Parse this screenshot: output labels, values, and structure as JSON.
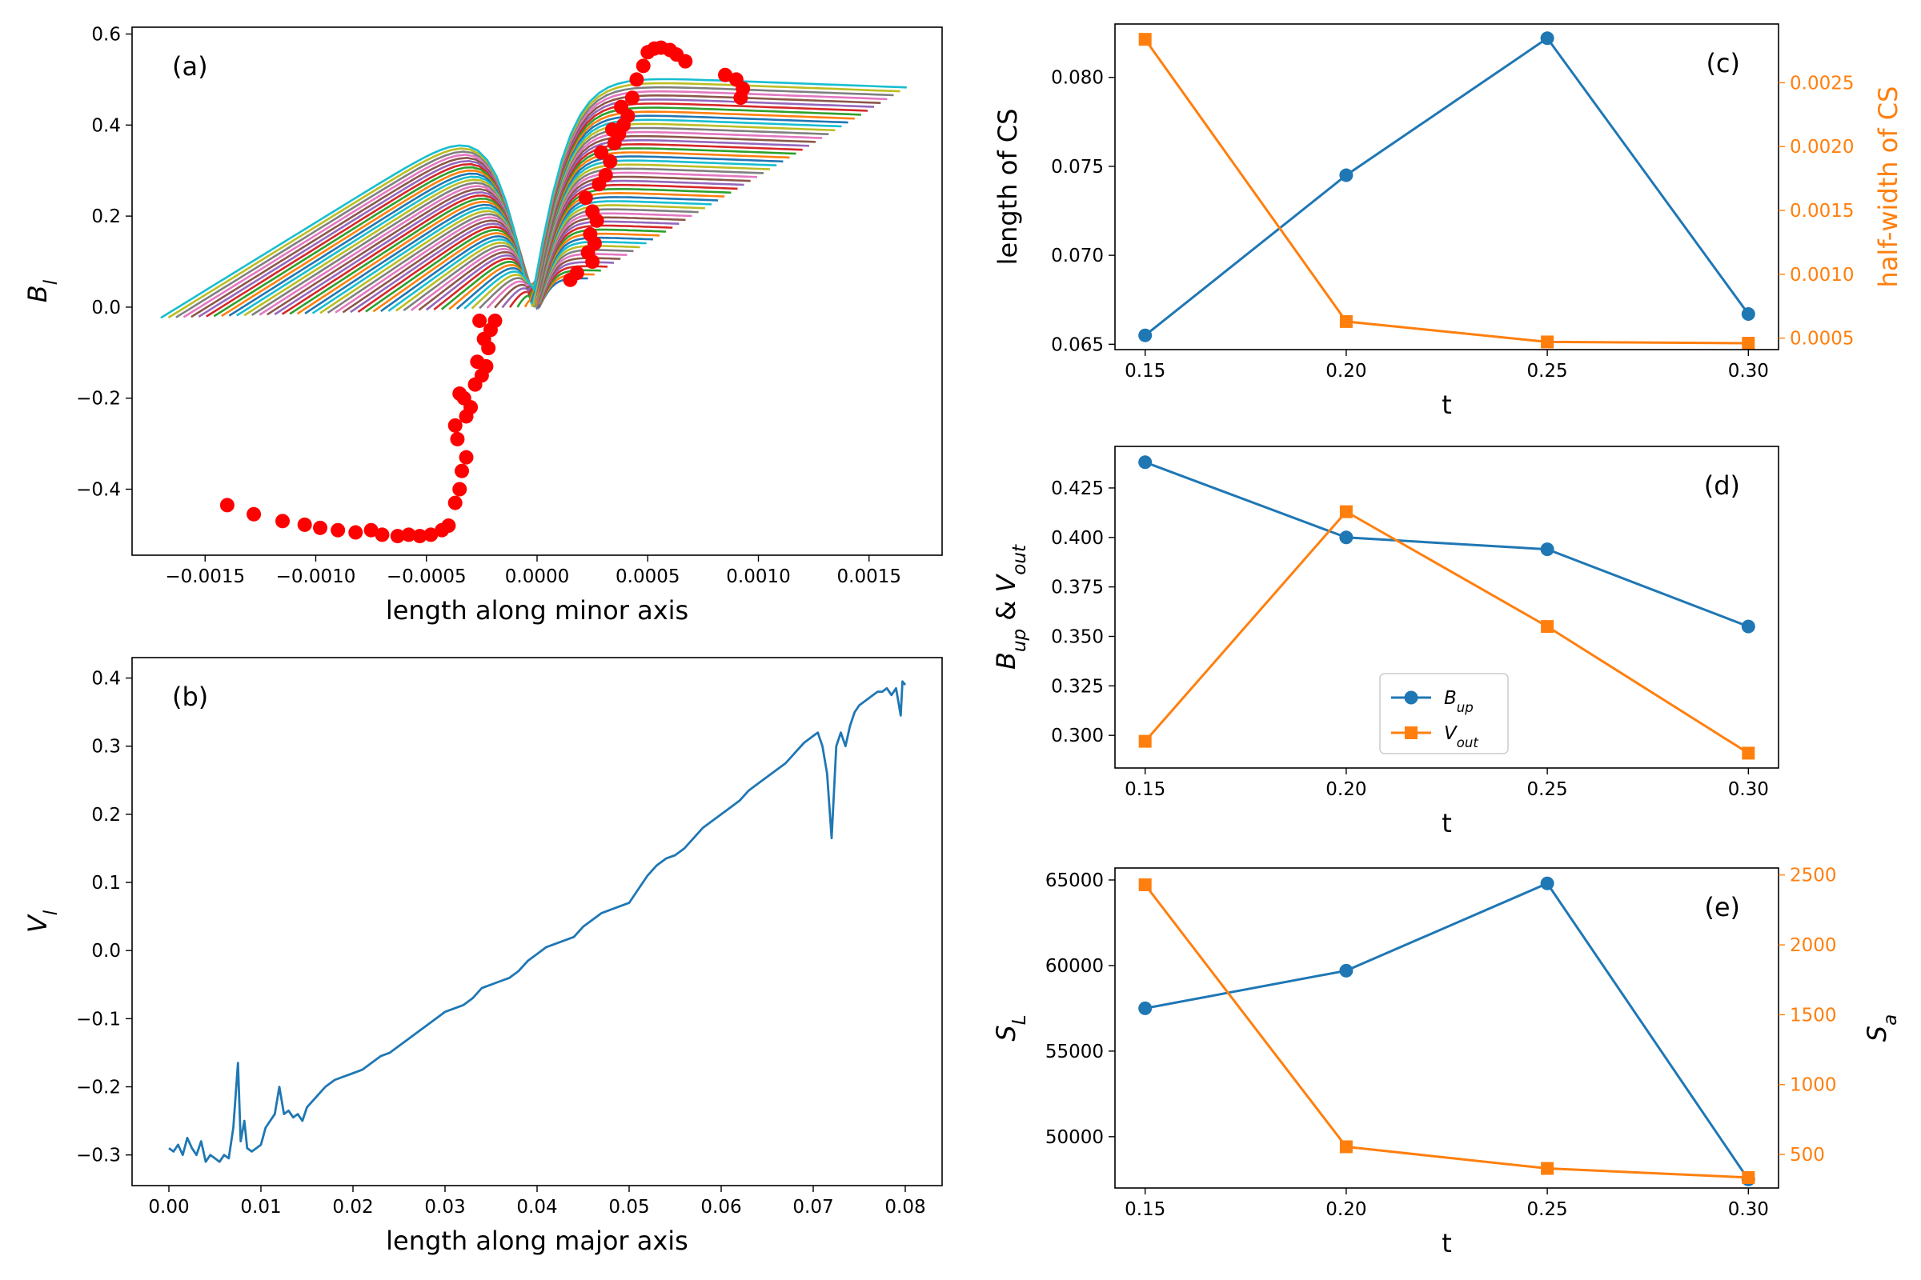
{
  "chart_data": [
    {
      "id": "a",
      "type": "line",
      "panel_label": "(a)",
      "xlabel": "length along minor axis",
      "ylabel": "B_l",
      "xlim": [
        -0.00183,
        0.00183
      ],
      "ylim": [
        -0.545,
        0.615
      ],
      "xticks": [
        -0.0015,
        -0.001,
        -0.0005,
        0.0,
        0.0005,
        0.001,
        0.0015
      ],
      "xtick_labels": [
        "−0.0015",
        "−0.0010",
        "−0.0005",
        "0.0000",
        "0.0005",
        "0.0010",
        "0.0015"
      ],
      "yticks": [
        -0.4,
        -0.2,
        0.0,
        0.2,
        0.4,
        0.6
      ],
      "ytick_labels": [
        "−0.4",
        "−0.2",
        "0.0",
        "0.2",
        "0.4",
        "0.6"
      ],
      "curve_count": 50,
      "curve_colors": [
        "#1f77b4",
        "#ff7f0e",
        "#2ca02c",
        "#d62728",
        "#9467bd",
        "#8c564b",
        "#e377c2",
        "#7f7f7f",
        "#bcbd22",
        "#17becf"
      ],
      "curve_model": {
        "left_end": [
          -2e-05,
          -0.0017
        ],
        "right_end": [
          0.00023,
          0.00167
        ],
        "left_plateau": [
          -0.05,
          -0.44
        ],
        "right_plateau": [
          0.06,
          0.458
        ]
      },
      "marker_color": "#ff0000",
      "markers": [
        [
          -0.0014,
          -0.435
        ],
        [
          -0.00128,
          -0.455
        ],
        [
          -0.00115,
          -0.47
        ],
        [
          -0.00105,
          -0.478
        ],
        [
          -0.00098,
          -0.485
        ],
        [
          -0.0009,
          -0.49
        ],
        [
          -0.00082,
          -0.495
        ],
        [
          -0.00075,
          -0.49
        ],
        [
          -0.0007,
          -0.5
        ],
        [
          -0.00063,
          -0.503
        ],
        [
          -0.00058,
          -0.5
        ],
        [
          -0.00053,
          -0.503
        ],
        [
          -0.00048,
          -0.5
        ],
        [
          -0.00043,
          -0.49
        ],
        [
          -0.0004,
          -0.48
        ],
        [
          -0.00037,
          -0.43
        ],
        [
          -0.00035,
          -0.4
        ],
        [
          -0.00034,
          -0.36
        ],
        [
          -0.00032,
          -0.33
        ],
        [
          -0.00036,
          -0.29
        ],
        [
          -0.00037,
          -0.26
        ],
        [
          -0.00032,
          -0.24
        ],
        [
          -0.0003,
          -0.22
        ],
        [
          -0.00033,
          -0.2
        ],
        [
          -0.00035,
          -0.19
        ],
        [
          -0.00028,
          -0.17
        ],
        [
          -0.00025,
          -0.15
        ],
        [
          -0.00023,
          -0.13
        ],
        [
          -0.00027,
          -0.12
        ],
        [
          -0.00022,
          -0.09
        ],
        [
          -0.00024,
          -0.07
        ],
        [
          -0.00021,
          -0.05
        ],
        [
          -0.00026,
          -0.03
        ],
        [
          -0.00019,
          -0.03
        ],
        [
          0.00015,
          0.06
        ],
        [
          0.00018,
          0.075
        ],
        [
          0.00025,
          0.1
        ],
        [
          0.00023,
          0.12
        ],
        [
          0.00026,
          0.14
        ],
        [
          0.00024,
          0.16
        ],
        [
          0.00027,
          0.19
        ],
        [
          0.00025,
          0.21
        ],
        [
          0.00022,
          0.24
        ],
        [
          0.00028,
          0.27
        ],
        [
          0.00031,
          0.29
        ],
        [
          0.00033,
          0.32
        ],
        [
          0.00029,
          0.34
        ],
        [
          0.00035,
          0.36
        ],
        [
          0.00037,
          0.38
        ],
        [
          0.00034,
          0.39
        ],
        [
          0.00039,
          0.4
        ],
        [
          0.00041,
          0.42
        ],
        [
          0.00038,
          0.44
        ],
        [
          0.00043,
          0.46
        ],
        [
          0.00045,
          0.5
        ],
        [
          0.00048,
          0.53
        ],
        [
          0.0005,
          0.56
        ],
        [
          0.00053,
          0.568
        ],
        [
          0.00056,
          0.57
        ],
        [
          0.0006,
          0.565
        ],
        [
          0.00063,
          0.555
        ],
        [
          0.00067,
          0.54
        ],
        [
          0.00085,
          0.51
        ],
        [
          0.0009,
          0.5
        ],
        [
          0.00093,
          0.48
        ],
        [
          0.00092,
          0.46
        ]
      ]
    },
    {
      "id": "b",
      "type": "line",
      "panel_label": "(b)",
      "xlabel": "length along major axis",
      "ylabel": "V_l",
      "xlim": [
        -0.004,
        0.084
      ],
      "ylim": [
        -0.345,
        0.43
      ],
      "xticks": [
        0.0,
        0.01,
        0.02,
        0.03,
        0.04,
        0.05,
        0.06,
        0.07,
        0.08
      ],
      "xtick_labels": [
        "0.00",
        "0.01",
        "0.02",
        "0.03",
        "0.04",
        "0.05",
        "0.06",
        "0.07",
        "0.08"
      ],
      "yticks": [
        -0.3,
        -0.2,
        -0.1,
        0.0,
        0.1,
        0.2,
        0.3,
        0.4
      ],
      "ytick_labels": [
        "−0.3",
        "−0.2",
        "−0.1",
        "0.0",
        "0.1",
        "0.2",
        "0.3",
        "0.4"
      ],
      "series": [
        {
          "name": "V_l",
          "color": "#1f77b4",
          "points": [
            [
              0.0,
              -0.29
            ],
            [
              0.0005,
              -0.295
            ],
            [
              0.001,
              -0.285
            ],
            [
              0.0015,
              -0.3
            ],
            [
              0.002,
              -0.275
            ],
            [
              0.0025,
              -0.29
            ],
            [
              0.003,
              -0.3
            ],
            [
              0.0035,
              -0.28
            ],
            [
              0.004,
              -0.31
            ],
            [
              0.0045,
              -0.3
            ],
            [
              0.005,
              -0.305
            ],
            [
              0.0055,
              -0.31
            ],
            [
              0.006,
              -0.3
            ],
            [
              0.0065,
              -0.305
            ],
            [
              0.007,
              -0.26
            ],
            [
              0.0075,
              -0.165
            ],
            [
              0.0078,
              -0.28
            ],
            [
              0.0082,
              -0.25
            ],
            [
              0.0085,
              -0.29
            ],
            [
              0.009,
              -0.295
            ],
            [
              0.0095,
              -0.29
            ],
            [
              0.01,
              -0.285
            ],
            [
              0.0105,
              -0.26
            ],
            [
              0.011,
              -0.25
            ],
            [
              0.0115,
              -0.24
            ],
            [
              0.012,
              -0.2
            ],
            [
              0.0125,
              -0.24
            ],
            [
              0.013,
              -0.235
            ],
            [
              0.0135,
              -0.245
            ],
            [
              0.014,
              -0.24
            ],
            [
              0.0145,
              -0.25
            ],
            [
              0.015,
              -0.23
            ],
            [
              0.016,
              -0.215
            ],
            [
              0.017,
              -0.2
            ],
            [
              0.018,
              -0.19
            ],
            [
              0.019,
              -0.185
            ],
            [
              0.02,
              -0.18
            ],
            [
              0.021,
              -0.175
            ],
            [
              0.022,
              -0.165
            ],
            [
              0.023,
              -0.155
            ],
            [
              0.024,
              -0.15
            ],
            [
              0.025,
              -0.14
            ],
            [
              0.026,
              -0.13
            ],
            [
              0.027,
              -0.12
            ],
            [
              0.028,
              -0.11
            ],
            [
              0.029,
              -0.1
            ],
            [
              0.03,
              -0.09
            ],
            [
              0.031,
              -0.085
            ],
            [
              0.032,
              -0.08
            ],
            [
              0.033,
              -0.07
            ],
            [
              0.034,
              -0.055
            ],
            [
              0.035,
              -0.05
            ],
            [
              0.036,
              -0.045
            ],
            [
              0.037,
              -0.04
            ],
            [
              0.038,
              -0.03
            ],
            [
              0.039,
              -0.015
            ],
            [
              0.04,
              -0.005
            ],
            [
              0.041,
              0.005
            ],
            [
              0.042,
              0.01
            ],
            [
              0.043,
              0.015
            ],
            [
              0.044,
              0.02
            ],
            [
              0.045,
              0.035
            ],
            [
              0.046,
              0.045
            ],
            [
              0.047,
              0.055
            ],
            [
              0.048,
              0.06
            ],
            [
              0.049,
              0.065
            ],
            [
              0.05,
              0.07
            ],
            [
              0.051,
              0.09
            ],
            [
              0.052,
              0.11
            ],
            [
              0.053,
              0.125
            ],
            [
              0.054,
              0.135
            ],
            [
              0.055,
              0.14
            ],
            [
              0.056,
              0.15
            ],
            [
              0.057,
              0.165
            ],
            [
              0.058,
              0.18
            ],
            [
              0.059,
              0.19
            ],
            [
              0.06,
              0.2
            ],
            [
              0.061,
              0.21
            ],
            [
              0.062,
              0.22
            ],
            [
              0.063,
              0.235
            ],
            [
              0.064,
              0.245
            ],
            [
              0.065,
              0.255
            ],
            [
              0.066,
              0.265
            ],
            [
              0.067,
              0.275
            ],
            [
              0.068,
              0.29
            ],
            [
              0.069,
              0.305
            ],
            [
              0.07,
              0.315
            ],
            [
              0.0705,
              0.32
            ],
            [
              0.071,
              0.3
            ],
            [
              0.0715,
              0.26
            ],
            [
              0.072,
              0.165
            ],
            [
              0.0725,
              0.3
            ],
            [
              0.073,
              0.32
            ],
            [
              0.0735,
              0.3
            ],
            [
              0.074,
              0.33
            ],
            [
              0.0745,
              0.35
            ],
            [
              0.075,
              0.36
            ],
            [
              0.0755,
              0.365
            ],
            [
              0.076,
              0.37
            ],
            [
              0.0765,
              0.375
            ],
            [
              0.077,
              0.38
            ],
            [
              0.0775,
              0.38
            ],
            [
              0.078,
              0.385
            ],
            [
              0.0785,
              0.375
            ],
            [
              0.079,
              0.385
            ],
            [
              0.0795,
              0.345
            ],
            [
              0.0797,
              0.395
            ],
            [
              0.08,
              0.39
            ]
          ]
        }
      ]
    },
    {
      "id": "c",
      "type": "line",
      "panel_label": "(c)",
      "xlabel": "t",
      "ylabel": "length of CS",
      "y2label": "half-width of CS",
      "xlim": [
        0.1425,
        0.3075
      ],
      "ylim": [
        0.0647,
        0.083
      ],
      "y2lim": [
        0.00041,
        0.00296
      ],
      "xticks": [
        0.15,
        0.2,
        0.25,
        0.3
      ],
      "xtick_labels": [
        "0.15",
        "0.20",
        "0.25",
        "0.30"
      ],
      "yticks": [
        0.065,
        0.07,
        0.075,
        0.08
      ],
      "ytick_labels": [
        "0.065",
        "0.070",
        "0.075",
        "0.080"
      ],
      "y2ticks": [
        0.0005,
        0.001,
        0.0015,
        0.002,
        0.0025
      ],
      "y2tick_labels": [
        "0.0005",
        "0.0010",
        "0.0015",
        "0.0020",
        "0.0025"
      ],
      "series": [
        {
          "name": "length of CS",
          "color": "#1f77b4",
          "marker": "circle",
          "axis": "left",
          "x": [
            0.15,
            0.2,
            0.25,
            0.3
          ],
          "values": [
            0.0655,
            0.0745,
            0.0822,
            0.0667
          ]
        },
        {
          "name": "half-width of CS",
          "color": "#ff7f0e",
          "marker": "square",
          "axis": "right",
          "x": [
            0.15,
            0.2,
            0.25,
            0.3
          ],
          "values": [
            0.00284,
            0.00063,
            0.00047,
            0.00046
          ]
        }
      ]
    },
    {
      "id": "d",
      "type": "line",
      "panel_label": "(d)",
      "xlabel": "t",
      "ylabel": "B_up & V_out",
      "xlim": [
        0.1425,
        0.3075
      ],
      "ylim": [
        0.2835,
        0.446
      ],
      "xticks": [
        0.15,
        0.2,
        0.25,
        0.3
      ],
      "xtick_labels": [
        "0.15",
        "0.20",
        "0.25",
        "0.30"
      ],
      "yticks": [
        0.3,
        0.325,
        0.35,
        0.375,
        0.4,
        0.425
      ],
      "ytick_labels": [
        "0.300",
        "0.325",
        "0.350",
        "0.375",
        "0.400",
        "0.425"
      ],
      "legend_position": "lower-center",
      "series": [
        {
          "name": "B_up",
          "color": "#1f77b4",
          "marker": "circle",
          "axis": "left",
          "x": [
            0.15,
            0.2,
            0.25,
            0.3
          ],
          "values": [
            0.438,
            0.4,
            0.394,
            0.355
          ]
        },
        {
          "name": "V_out",
          "color": "#ff7f0e",
          "marker": "square",
          "axis": "left",
          "x": [
            0.15,
            0.2,
            0.25,
            0.3
          ],
          "values": [
            0.297,
            0.413,
            0.355,
            0.291
          ]
        }
      ]
    },
    {
      "id": "e",
      "type": "line",
      "panel_label": "(e)",
      "xlabel": "t",
      "ylabel": "S_L",
      "y2label": "S_a",
      "xlim": [
        0.1425,
        0.3075
      ],
      "ylim": [
        47000,
        65700
      ],
      "y2lim": [
        260,
        2550
      ],
      "xticks": [
        0.15,
        0.2,
        0.25,
        0.3
      ],
      "xtick_labels": [
        "0.15",
        "0.20",
        "0.25",
        "0.30"
      ],
      "yticks": [
        50000,
        55000,
        60000,
        65000
      ],
      "ytick_labels": [
        "50000",
        "55000",
        "60000",
        "65000"
      ],
      "y2ticks": [
        500,
        1000,
        1500,
        2000,
        2500
      ],
      "y2tick_labels": [
        "500",
        "1000",
        "1500",
        "2000",
        "2500"
      ],
      "series": [
        {
          "name": "S_L",
          "color": "#1f77b4",
          "marker": "circle",
          "axis": "left",
          "x": [
            0.15,
            0.2,
            0.25,
            0.3
          ],
          "values": [
            57500,
            59700,
            64800,
            47500
          ]
        },
        {
          "name": "S_a",
          "color": "#ff7f0e",
          "marker": "square",
          "axis": "right",
          "x": [
            0.15,
            0.2,
            0.25,
            0.3
          ],
          "values": [
            2430,
            555,
            400,
            335
          ]
        }
      ]
    }
  ]
}
